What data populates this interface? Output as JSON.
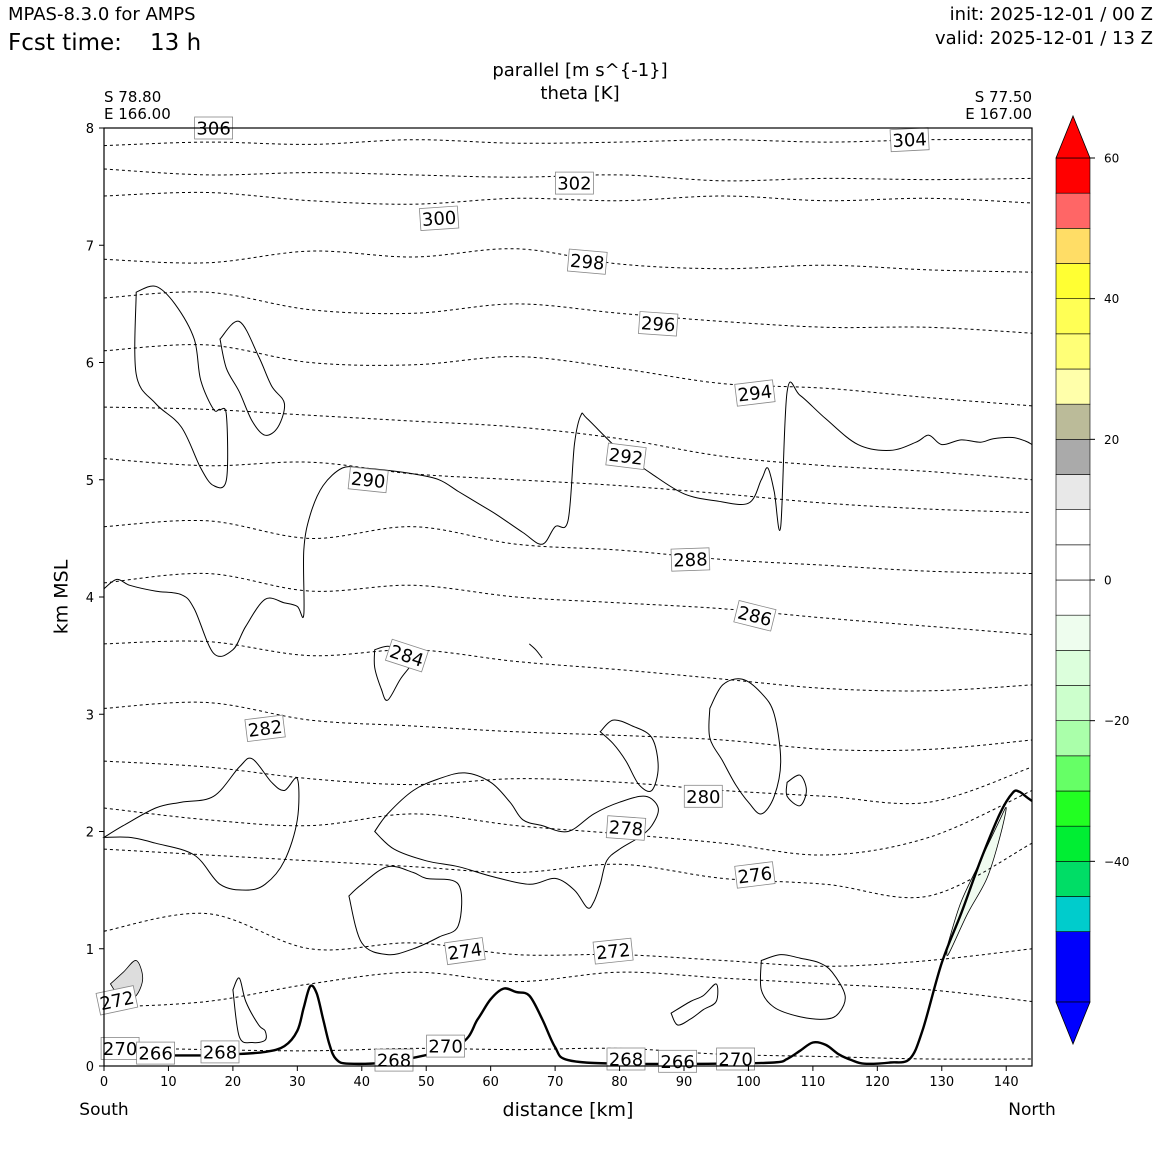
{
  "header": {
    "model": "MPAS-8.3.0 for AMPS",
    "fcst_label": "Fcst time:",
    "fcst_value": "13 h",
    "init": "init: 2025-12-01 / 00 Z",
    "valid": "valid: 2025-12-01 / 13 Z"
  },
  "endpoints": {
    "left_lat": "S 78.80",
    "left_lon": "E 166.00",
    "right_lat": "S 77.50",
    "right_lon": "E 167.00",
    "left_dir": "South",
    "right_dir": "North"
  },
  "chart_data": {
    "type": "vertical-cross-section",
    "title": "parallel [m s^{-1}]",
    "subtitle": "theta [K]",
    "xlabel": "distance [km]",
    "ylabel": "km MSL",
    "xlim": [
      0,
      144
    ],
    "ylim": [
      0,
      8
    ],
    "xticks": [
      0,
      10,
      20,
      30,
      40,
      50,
      60,
      70,
      80,
      90,
      100,
      110,
      120,
      130,
      140
    ],
    "yticks": [
      0,
      1,
      2,
      3,
      4,
      5,
      6,
      7,
      8
    ],
    "terrain": {
      "x": [
        0,
        5,
        10,
        15,
        20,
        25,
        28,
        30,
        31,
        32,
        33,
        34,
        35,
        36,
        38,
        45,
        55,
        58,
        60,
        62,
        64,
        66,
        68,
        70,
        72,
        80,
        95,
        104,
        106,
        108,
        110,
        112,
        114,
        116,
        118,
        122,
        125,
        127,
        130,
        133,
        136,
        139,
        141,
        142,
        143,
        144
      ],
      "z": [
        0.08,
        0.09,
        0.09,
        0.09,
        0.1,
        0.12,
        0.17,
        0.3,
        0.5,
        0.68,
        0.62,
        0.4,
        0.18,
        0.06,
        0.02,
        0.04,
        0.18,
        0.4,
        0.57,
        0.66,
        0.63,
        0.6,
        0.4,
        0.16,
        0.05,
        0.02,
        0.02,
        0.03,
        0.06,
        0.13,
        0.2,
        0.18,
        0.1,
        0.05,
        0.02,
        0.03,
        0.06,
        0.3,
        0.88,
        1.3,
        1.75,
        2.15,
        2.33,
        2.34,
        2.3,
        2.26
      ]
    },
    "theta_contours": {
      "style": "dashed",
      "levels": [
        {
          "k": 304,
          "z": [
            7.85,
            7.88,
            7.86,
            7.9,
            7.87,
            7.88,
            7.9,
            7.88,
            7.9,
            7.9
          ]
        },
        {
          "k": 302,
          "z": [
            7.65,
            7.6,
            7.62,
            7.6,
            7.58,
            7.6,
            7.55,
            7.57,
            7.56,
            7.57
          ]
        },
        {
          "k": 300,
          "z": [
            7.42,
            7.45,
            7.38,
            7.35,
            7.4,
            7.38,
            7.42,
            7.38,
            7.4,
            7.36
          ]
        },
        {
          "k": 298,
          "z": [
            6.88,
            6.85,
            6.95,
            6.9,
            6.97,
            6.84,
            6.8,
            6.83,
            6.79,
            6.77
          ]
        },
        {
          "k": 296,
          "z": [
            6.55,
            6.6,
            6.45,
            6.42,
            6.5,
            6.42,
            6.35,
            6.3,
            6.3,
            6.25
          ]
        },
        {
          "k": 294,
          "z": [
            6.1,
            6.15,
            6.0,
            5.98,
            6.05,
            5.95,
            5.82,
            5.78,
            5.7,
            5.63
          ]
        },
        {
          "k": 292,
          "z": [
            5.62,
            5.6,
            5.55,
            5.5,
            5.45,
            5.35,
            5.2,
            5.12,
            5.07,
            5.0
          ]
        },
        {
          "k": 290,
          "z": [
            5.18,
            5.12,
            5.15,
            5.05,
            5.0,
            4.95,
            4.88,
            4.8,
            4.75,
            4.72
          ]
        },
        {
          "k": 288,
          "z": [
            4.6,
            4.65,
            4.5,
            4.6,
            4.45,
            4.4,
            4.32,
            4.27,
            4.22,
            4.2
          ]
        },
        {
          "k": 286,
          "z": [
            4.12,
            4.2,
            4.05,
            4.1,
            4.0,
            3.95,
            3.9,
            3.82,
            3.75,
            3.68
          ]
        },
        {
          "k": 284,
          "z": [
            3.6,
            3.62,
            3.5,
            3.55,
            3.45,
            3.38,
            3.3,
            3.22,
            3.2,
            3.25
          ]
        },
        {
          "k": 282,
          "z": [
            3.05,
            3.1,
            2.95,
            2.9,
            2.85,
            2.82,
            2.78,
            2.7,
            2.7,
            2.78
          ]
        },
        {
          "k": 280,
          "z": [
            2.6,
            2.55,
            2.45,
            2.4,
            2.45,
            2.42,
            2.35,
            2.3,
            2.25,
            2.55
          ]
        },
        {
          "k": 278,
          "z": [
            2.2,
            2.1,
            2.05,
            2.15,
            2.05,
            1.98,
            1.9,
            1.8,
            1.95,
            2.35
          ]
        },
        {
          "k": 276,
          "z": [
            1.85,
            1.8,
            1.75,
            1.7,
            1.65,
            1.72,
            1.6,
            1.55,
            1.45,
            1.9
          ]
        },
        {
          "k": 274,
          "z": [
            1.15,
            1.3,
            1.0,
            1.05,
            0.95,
            0.95,
            0.9,
            0.85,
            0.9,
            1.0
          ]
        },
        {
          "k": 272,
          "z": [
            0.5,
            0.55,
            0.7,
            0.8,
            0.72,
            0.8,
            0.75,
            0.7,
            0.65,
            0.55
          ]
        },
        {
          "k": 270,
          "z": [
            0.16,
            0.14,
            0.13,
            0.15,
            0.14,
            0.15,
            0.1,
            0.08,
            0.06,
            0.06
          ]
        }
      ]
    },
    "theta_labels": [
      {
        "text": "306",
        "x": 17,
        "z": 8.0,
        "rot": 0
      },
      {
        "text": "304",
        "x": 125,
        "z": 7.9,
        "rot": -3
      },
      {
        "text": "302",
        "x": 73,
        "z": 7.53,
        "rot": 0
      },
      {
        "text": "300",
        "x": 52,
        "z": 7.23,
        "rot": -4
      },
      {
        "text": "298",
        "x": 75,
        "z": 6.86,
        "rot": 5
      },
      {
        "text": "296",
        "x": 86,
        "z": 6.33,
        "rot": 4
      },
      {
        "text": "294",
        "x": 101,
        "z": 5.74,
        "rot": -7
      },
      {
        "text": "292",
        "x": 81,
        "z": 5.2,
        "rot": 7
      },
      {
        "text": "290",
        "x": 41,
        "z": 5.0,
        "rot": 6
      },
      {
        "text": "288",
        "x": 91,
        "z": 4.32,
        "rot": -2
      },
      {
        "text": "286",
        "x": 101,
        "z": 3.84,
        "rot": 14
      },
      {
        "text": "284",
        "x": 47,
        "z": 3.5,
        "rot": 18
      },
      {
        "text": "282",
        "x": 25,
        "z": 2.88,
        "rot": -7
      },
      {
        "text": "280",
        "x": 93,
        "z": 2.3,
        "rot": 0
      },
      {
        "text": "278",
        "x": 81,
        "z": 2.03,
        "rot": 4
      },
      {
        "text": "276",
        "x": 101,
        "z": 1.63,
        "rot": -7
      },
      {
        "text": "274",
        "x": 56,
        "z": 0.98,
        "rot": -8
      },
      {
        "text": "272",
        "x": 79,
        "z": 0.98,
        "rot": -6
      },
      {
        "text": "272",
        "x": 2,
        "z": 0.56,
        "rot": -12
      },
      {
        "text": "270",
        "x": 53,
        "z": 0.17,
        "rot": 0
      },
      {
        "text": "270",
        "x": 2.5,
        "z": 0.15,
        "rot": 0
      },
      {
        "text": "270",
        "x": 98,
        "z": 0.06,
        "rot": 0
      },
      {
        "text": "268",
        "x": 18,
        "z": 0.12,
        "rot": 0
      },
      {
        "text": "268",
        "x": 45,
        "z": 0.05,
        "rot": 0
      },
      {
        "text": "268",
        "x": 81,
        "z": 0.06,
        "rot": 0
      },
      {
        "text": "266",
        "x": 8,
        "z": 0.11,
        "rot": 0
      },
      {
        "text": "266",
        "x": 89,
        "z": 0.04,
        "rot": 0
      }
    ],
    "wind_contours": {
      "style": "solid",
      "paths": [
        {
          "x": [
            0,
            2,
            4,
            8,
            12,
            14,
            17,
            20,
            22,
            25,
            28,
            30,
            31,
            31,
            32,
            34,
            37,
            40,
            44,
            48,
            52,
            55,
            58,
            61,
            65,
            68,
            70,
            72,
            73,
            74,
            75,
            80,
            85,
            90,
            95,
            100,
            102,
            103,
            104,
            105,
            106,
            108,
            112,
            117,
            122,
            126,
            128,
            130,
            133,
            136,
            138,
            141,
            143,
            144
          ],
          "z": [
            4.07,
            4.15,
            4.1,
            4.05,
            4.02,
            3.9,
            3.52,
            3.55,
            3.75,
            3.98,
            3.95,
            3.92,
            3.85,
            4.4,
            4.7,
            4.95,
            5.1,
            5.1,
            5.08,
            5.05,
            5.0,
            4.9,
            4.8,
            4.7,
            4.55,
            4.45,
            4.6,
            4.65,
            5.3,
            5.55,
            5.52,
            5.25,
            5.05,
            4.88,
            4.82,
            4.8,
            5.0,
            5.1,
            4.9,
            4.6,
            5.75,
            5.72,
            5.52,
            5.3,
            5.25,
            5.32,
            5.38,
            5.3,
            5.34,
            5.32,
            5.35,
            5.36,
            5.33,
            5.3
          ]
        },
        {
          "x": [
            5,
            8,
            11,
            14,
            15,
            17,
            18,
            19,
            19,
            17,
            15,
            12,
            8,
            5,
            5
          ],
          "z": [
            6.6,
            6.65,
            6.5,
            6.2,
            5.85,
            5.6,
            5.6,
            5.55,
            5.0,
            4.95,
            5.1,
            5.45,
            5.65,
            5.9,
            6.6
          ]
        },
        {
          "x": [
            18,
            21,
            24,
            26,
            28,
            27,
            25,
            23,
            21,
            19,
            18
          ],
          "z": [
            6.2,
            6.35,
            6.05,
            5.8,
            5.65,
            5.45,
            5.38,
            5.5,
            5.75,
            5.95,
            6.2
          ]
        },
        {
          "x": [
            42,
            44,
            46,
            47,
            48,
            46,
            44,
            43,
            42,
            42
          ],
          "z": [
            3.55,
            3.58,
            3.55,
            3.48,
            3.45,
            3.3,
            3.12,
            3.22,
            3.4,
            3.55
          ]
        },
        {
          "x": [
            66,
            67,
            68,
            67,
            66
          ],
          "z": [
            3.6,
            3.55,
            3.48,
            3.55,
            3.6
          ]
        },
        {
          "x": [
            0,
            3,
            8,
            12,
            17,
            21,
            23,
            26,
            28,
            30,
            30,
            28,
            25,
            22,
            18,
            14,
            8,
            4,
            0
          ],
          "z": [
            1.95,
            2.05,
            2.2,
            2.25,
            2.3,
            2.55,
            2.62,
            2.42,
            2.35,
            2.45,
            2.1,
            1.75,
            1.55,
            1.5,
            1.55,
            1.8,
            1.9,
            1.95,
            1.95
          ]
        },
        {
          "x": [
            42,
            44,
            48,
            52,
            56,
            60,
            63,
            65,
            68,
            72,
            76,
            80,
            84,
            86,
            85,
            83,
            80,
            78,
            77,
            76,
            75,
            73,
            70,
            66,
            60,
            55,
            50,
            45,
            42
          ],
          "z": [
            2.0,
            2.15,
            2.35,
            2.45,
            2.5,
            2.42,
            2.25,
            2.1,
            2.05,
            2.0,
            2.15,
            2.25,
            2.3,
            2.2,
            2.05,
            1.95,
            1.85,
            1.75,
            1.55,
            1.4,
            1.35,
            1.5,
            1.6,
            1.55,
            1.62,
            1.7,
            1.75,
            1.85,
            2.0
          ]
        },
        {
          "x": [
            77,
            79,
            82,
            85,
            86,
            85,
            83,
            81,
            79,
            77
          ],
          "z": [
            2.85,
            2.95,
            2.9,
            2.8,
            2.55,
            2.35,
            2.4,
            2.6,
            2.75,
            2.85
          ]
        },
        {
          "x": [
            94,
            96,
            99,
            102,
            104,
            105,
            104,
            102,
            100,
            98,
            96,
            94,
            94
          ],
          "z": [
            3.05,
            3.25,
            3.3,
            3.18,
            3.0,
            2.6,
            2.3,
            2.15,
            2.25,
            2.4,
            2.6,
            2.8,
            3.05
          ]
        },
        {
          "x": [
            106,
            108,
            109,
            108,
            106,
            106
          ],
          "z": [
            2.42,
            2.48,
            2.35,
            2.22,
            2.3,
            2.42
          ]
        },
        {
          "x": [
            38,
            40,
            44,
            48,
            50,
            55,
            55,
            52,
            48,
            44,
            40,
            38
          ],
          "z": [
            1.45,
            1.55,
            1.7,
            1.65,
            1.6,
            1.55,
            1.2,
            1.1,
            1.0,
            0.95,
            1.05,
            1.45
          ]
        },
        {
          "x": [
            102,
            105,
            108,
            111,
            113,
            115,
            114,
            112,
            108,
            104,
            102,
            102
          ],
          "z": [
            0.9,
            0.95,
            0.92,
            0.88,
            0.8,
            0.6,
            0.45,
            0.4,
            0.42,
            0.5,
            0.65,
            0.9
          ]
        },
        {
          "x": [
            88,
            91,
            93,
            95,
            95,
            93,
            91,
            89,
            88
          ],
          "z": [
            0.45,
            0.55,
            0.6,
            0.7,
            0.55,
            0.48,
            0.4,
            0.35,
            0.45
          ]
        },
        {
          "x": [
            20,
            21,
            22,
            24,
            25,
            25,
            23,
            21,
            20
          ],
          "z": [
            0.65,
            0.75,
            0.55,
            0.35,
            0.3,
            0.22,
            0.2,
            0.25,
            0.65
          ]
        }
      ]
    },
    "shaded_regions": [
      {
        "color": "#dddddd",
        "x": [
          1,
          3,
          5,
          6,
          5,
          3,
          1
        ],
        "z": [
          0.7,
          0.8,
          0.9,
          0.75,
          0.6,
          0.55,
          0.7
        ]
      },
      {
        "color": "#f0fbf0",
        "x": [
          131,
          133,
          136,
          139,
          140,
          139,
          137,
          134,
          131,
          131
        ],
        "z": [
          1.05,
          1.4,
          1.75,
          2.1,
          2.2,
          1.95,
          1.6,
          1.3,
          0.95,
          1.05
        ]
      }
    ],
    "colorbar": {
      "levels": [
        -60,
        -50,
        -45,
        -40,
        -35,
        -30,
        -25,
        -20,
        -15,
        -10,
        -5,
        0,
        5,
        10,
        15,
        20,
        25,
        30,
        35,
        40,
        45,
        50,
        55,
        60
      ],
      "colors": [
        "#0000fc",
        "#00cccc",
        "#00dd66",
        "#00ee33",
        "#22ff22",
        "#66ff66",
        "#aaffaa",
        "#ccffcc",
        "#dcffdc",
        "#eefdee",
        "#ffffff",
        "#ffffff",
        "#ffffff",
        "#e8e8e8",
        "#aaaaaa",
        "#bbbb99",
        "#ffffaa",
        "#ffff77",
        "#ffff55",
        "#ffff33",
        "#ffdd66",
        "#ff6666",
        "#ff0000"
      ],
      "under_color": "#0000ff",
      "over_color": "#ff0000",
      "ticks": [
        60,
        40,
        20,
        0,
        -20,
        -40
      ],
      "tick_labels": [
        "60",
        "40",
        "20",
        "0",
        "−20",
        "−40"
      ]
    }
  }
}
